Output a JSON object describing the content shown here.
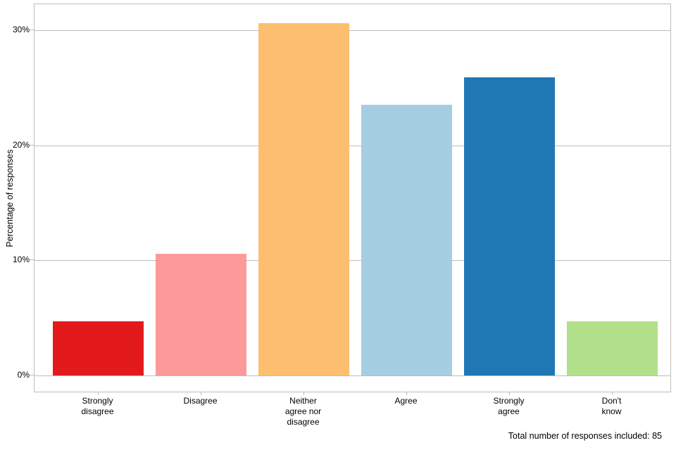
{
  "chart_data": {
    "type": "bar",
    "title": "",
    "xlabel": "",
    "ylabel": "Percentage of responses",
    "categories": [
      "Strongly\ndisagree",
      "Disagree",
      "Neither\nagree nor\ndisagree",
      "Agree",
      "Strongly\nagree",
      "Don't\nknow"
    ],
    "category_ids": [
      "strongly-disagree",
      "disagree",
      "neither-agree-nor-disagree",
      "agree",
      "strongly-agree",
      "dont-know"
    ],
    "values": [
      4.7,
      10.6,
      30.6,
      23.5,
      25.9,
      4.7
    ],
    "bar_colors": [
      "#E31A1C",
      "#FB9A99",
      "#FDBF6F",
      "#A6CEE3",
      "#1F78B4",
      "#B2DF8A"
    ],
    "y_tick_labels": [
      "0%",
      "10%",
      "20%",
      "30%"
    ],
    "y_tick_values": [
      0,
      10,
      20,
      30
    ],
    "ylim": [
      -1.5,
      32.3
    ],
    "grid": true,
    "legend": false,
    "footer": "Total number of responses included: 85"
  },
  "colors": {
    "grid": "#BDBDBD",
    "panel_border": "#BDBDBD",
    "text": "#000000",
    "background": "#FFFFFF"
  }
}
